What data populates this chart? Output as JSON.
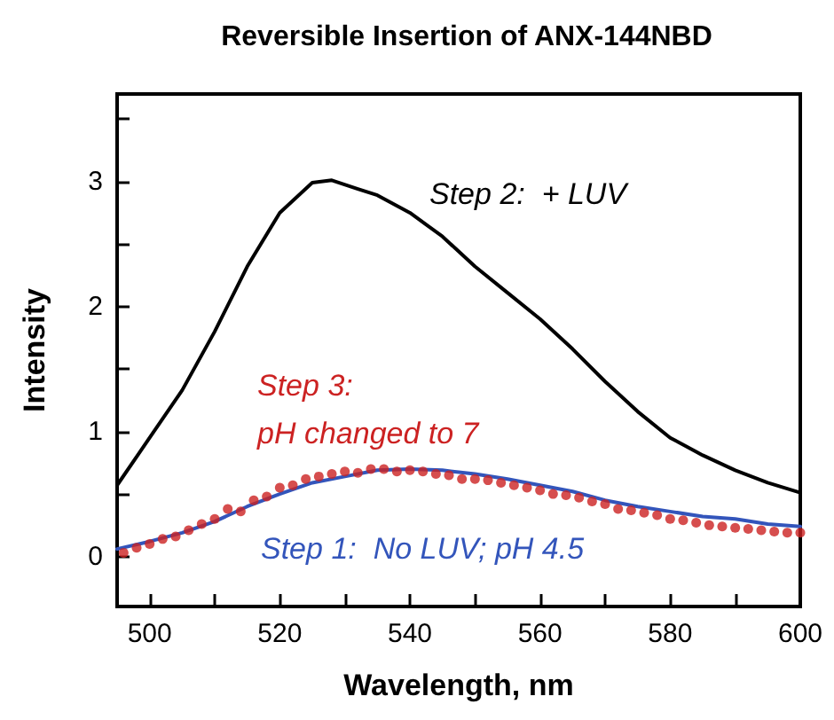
{
  "chart_data": {
    "type": "line",
    "title": "Reversible Insertion of ANX-144NBD",
    "xlabel": "Wavelength, nm",
    "ylabel": "Intensity",
    "xlim": [
      495,
      600
    ],
    "ylim": [
      -0.4,
      3.7
    ],
    "xticks": [
      500,
      {
        "value": 510,
        "label": null
      },
      520,
      {
        "value": 530,
        "label": null
      },
      540,
      {
        "value": 550,
        "label": null
      },
      560,
      {
        "value": 570,
        "label": null
      },
      580,
      {
        "value": 590,
        "label": null
      },
      600
    ],
    "yticks": [
      0,
      {
        "value": 0.5,
        "label": null
      },
      1,
      {
        "value": 1.5,
        "label": null
      },
      2,
      {
        "value": 2.5,
        "label": null
      },
      3,
      {
        "value": 3.5,
        "label": null
      }
    ],
    "grid": false,
    "legend": false,
    "line_style": "solid",
    "series": [
      {
        "name": "Step 2:  + LUV",
        "color": "#000000",
        "x": [
          495,
          500,
          505,
          510,
          515,
          520,
          525,
          528,
          532,
          535,
          540,
          545,
          550,
          555,
          560,
          565,
          570,
          575,
          580,
          585,
          590,
          595,
          600
        ],
        "values": [
          0.57,
          0.95,
          1.33,
          1.8,
          2.32,
          2.75,
          2.99,
          3.01,
          2.94,
          2.89,
          2.75,
          2.56,
          2.32,
          2.11,
          1.9,
          1.66,
          1.4,
          1.16,
          0.95,
          0.81,
          0.69,
          0.59,
          0.51
        ]
      },
      {
        "name": "Step 1:  No LUV; pH 4.5",
        "color": "#3355bb",
        "x": [
          495,
          500,
          505,
          510,
          515,
          520,
          525,
          530,
          535,
          540,
          545,
          550,
          555,
          560,
          565,
          570,
          575,
          580,
          585,
          590,
          595,
          600
        ],
        "values": [
          0.06,
          0.12,
          0.19,
          0.28,
          0.4,
          0.5,
          0.59,
          0.64,
          0.69,
          0.7,
          0.69,
          0.66,
          0.62,
          0.57,
          0.52,
          0.45,
          0.4,
          0.36,
          0.32,
          0.3,
          0.26,
          0.24
        ]
      },
      {
        "name": "Step 3:\npH changed to 7",
        "type": "scatter",
        "marker": "circle",
        "color": "#cc2222",
        "x": [
          496,
          498,
          500,
          502,
          504,
          506,
          508,
          510,
          512,
          514,
          516,
          518,
          520,
          522,
          524,
          526,
          528,
          530,
          532,
          534,
          536,
          538,
          540,
          542,
          544,
          546,
          548,
          550,
          552,
          554,
          556,
          558,
          560,
          562,
          564,
          566,
          568,
          570,
          572,
          574,
          576,
          578,
          580,
          582,
          584,
          586,
          588,
          590,
          592,
          594,
          596,
          598,
          600
        ],
        "values": [
          0.03,
          0.07,
          0.1,
          0.14,
          0.16,
          0.21,
          0.26,
          0.3,
          0.38,
          0.36,
          0.45,
          0.48,
          0.55,
          0.57,
          0.62,
          0.64,
          0.66,
          0.68,
          0.67,
          0.7,
          0.7,
          0.68,
          0.69,
          0.68,
          0.66,
          0.65,
          0.62,
          0.62,
          0.61,
          0.59,
          0.57,
          0.55,
          0.53,
          0.5,
          0.49,
          0.47,
          0.44,
          0.42,
          0.38,
          0.37,
          0.35,
          0.33,
          0.3,
          0.29,
          0.27,
          0.25,
          0.24,
          0.23,
          0.22,
          0.21,
          0.2,
          0.19,
          0.19
        ]
      }
    ]
  }
}
